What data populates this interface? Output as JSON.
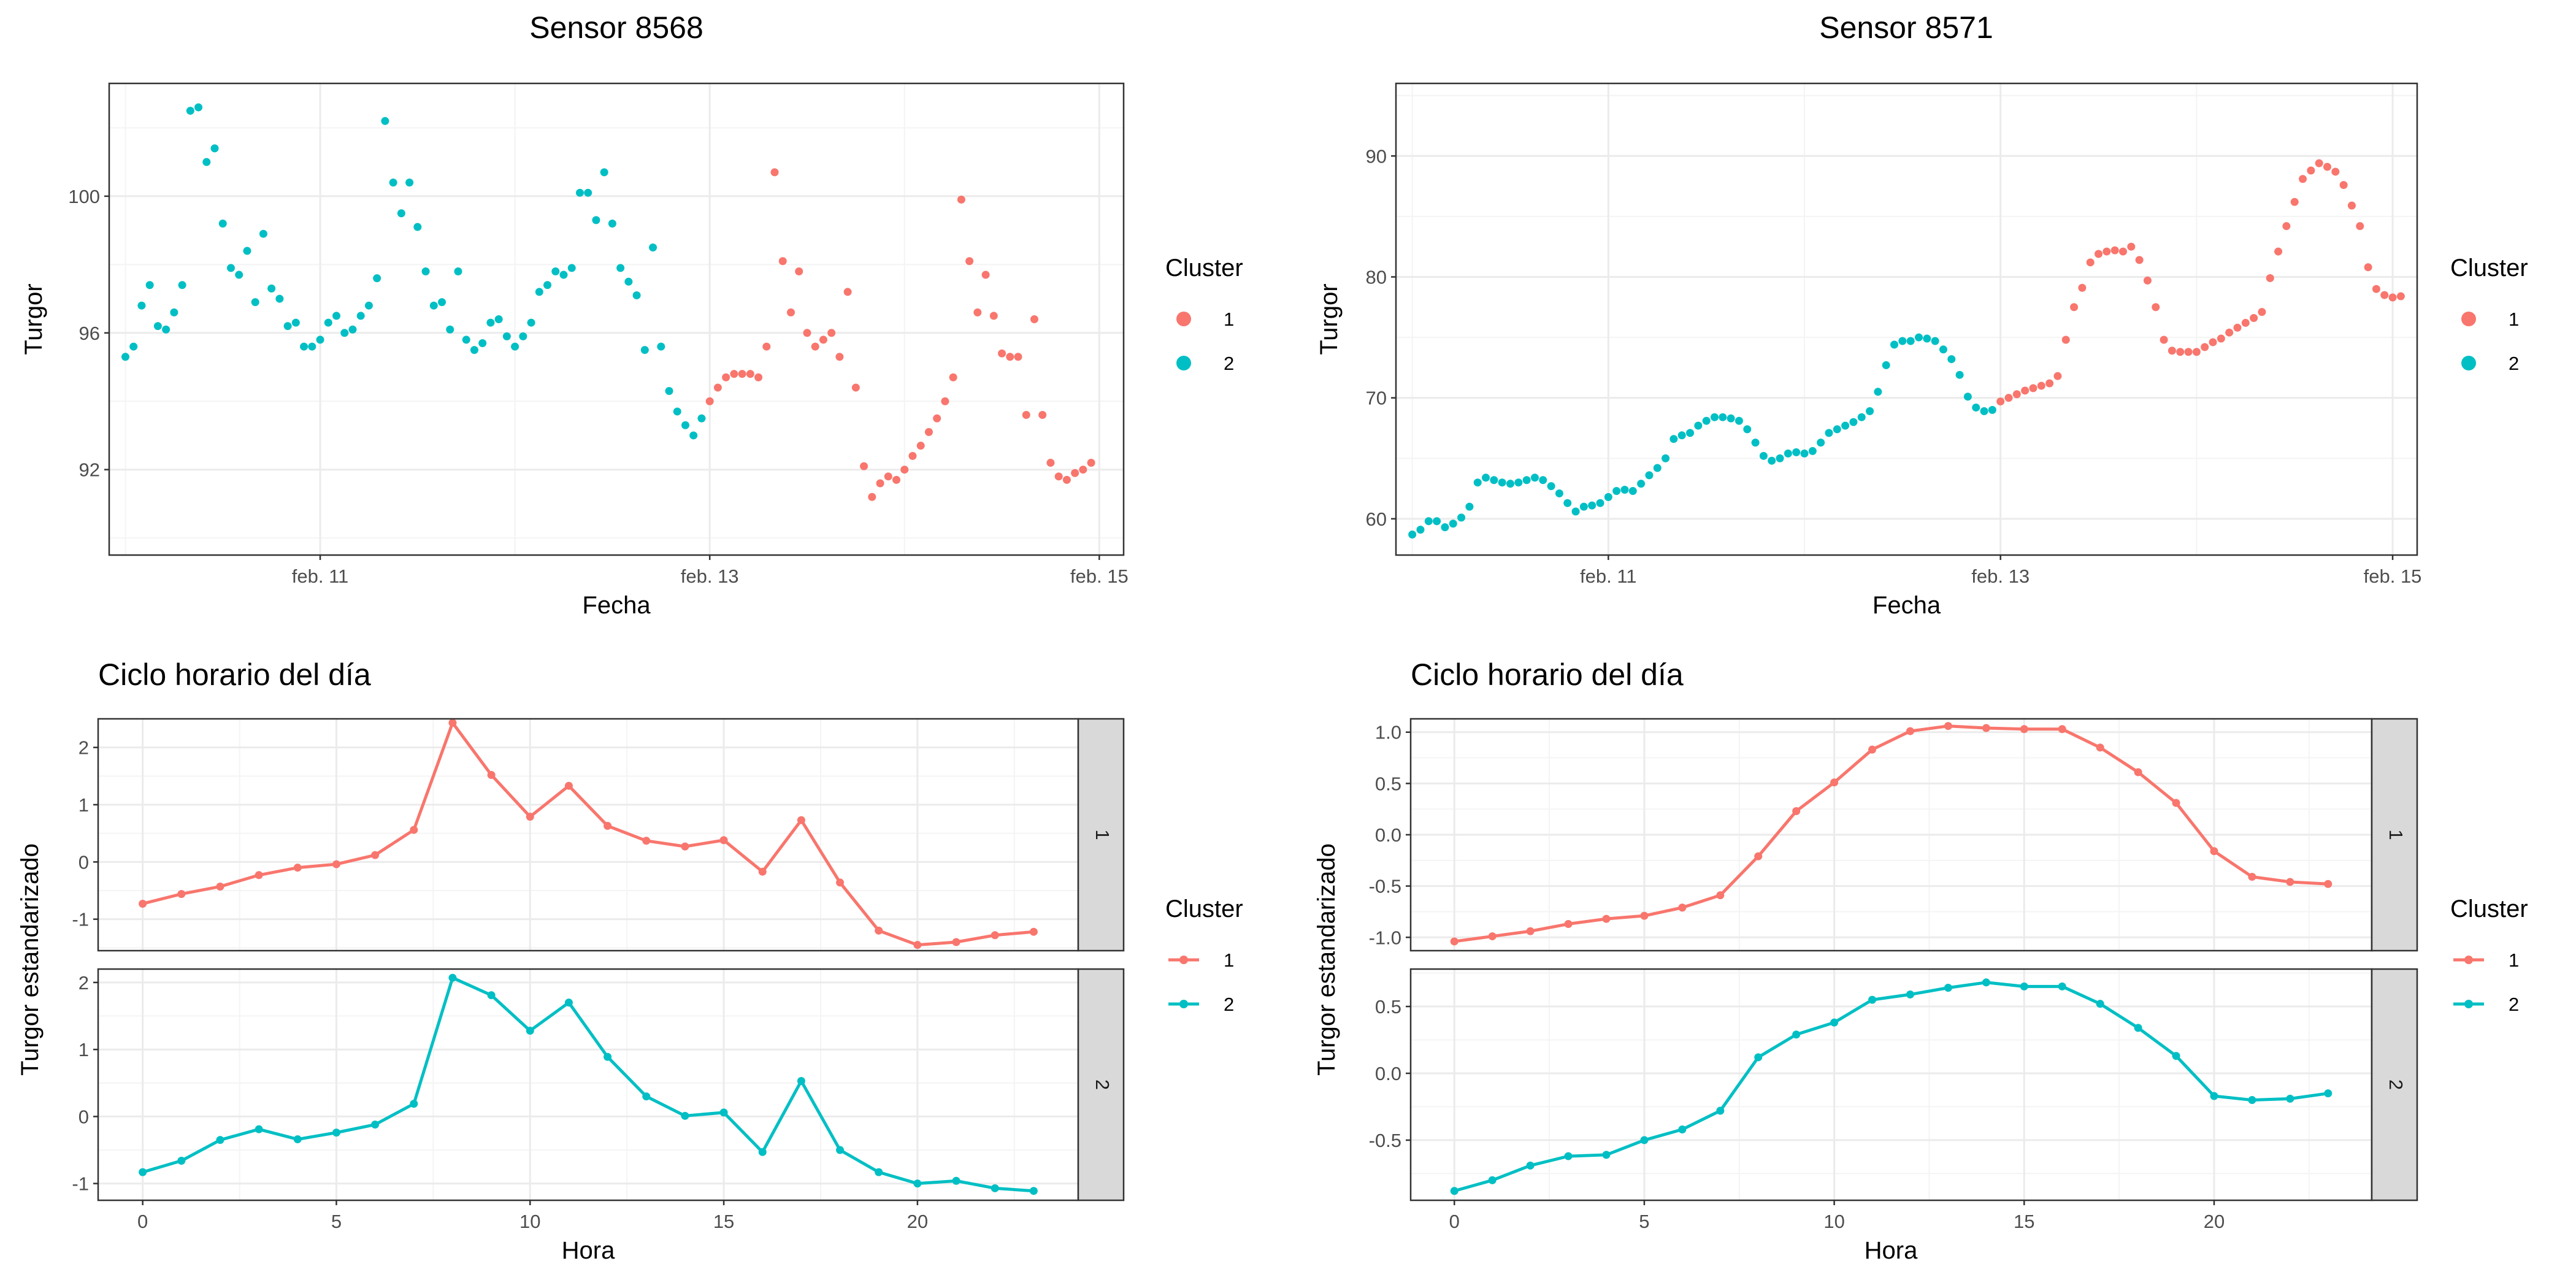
{
  "colors": {
    "cluster1": "#F8766D",
    "cluster2": "#00BFC4",
    "grid_major": "#EBEBEB",
    "grid_minor": "#F4F4F4",
    "strip_bg": "#D9D9D9",
    "border": "#333333"
  },
  "chart_data": [
    {
      "type": "scatter",
      "title": "Sensor 8568",
      "xlabel": "Fecha",
      "ylabel": "Turgor",
      "x_ticks": [
        {
          "value": "2023-02-11T00:00",
          "label": "feb. 11"
        },
        {
          "value": "2023-02-13T00:00",
          "label": "feb. 13"
        },
        {
          "value": "2023-02-15T00:00",
          "label": "feb. 15"
        }
      ],
      "y_ticks": [
        92,
        96,
        100
      ],
      "xlim": [
        "2023-02-09T22:00",
        "2023-02-15T03:00"
      ],
      "ylim": [
        89.5,
        103.3
      ],
      "legend": {
        "title": "Cluster",
        "entries": [
          "1",
          "2"
        ],
        "position": "right"
      },
      "start": "2023-02-10T00:00",
      "step_hours": 1,
      "series": [
        {
          "name": "2",
          "color_key": "cluster2",
          "values": [
            95.3,
            95.6,
            96.8,
            97.4,
            96.2,
            96.1,
            96.6,
            97.4,
            102.5,
            102.6,
            101.0,
            101.4,
            99.2,
            97.9,
            97.7,
            98.4,
            96.9,
            98.9,
            97.3,
            97.0,
            96.2,
            96.3,
            95.6,
            95.6,
            95.8,
            96.3,
            96.5,
            96.0,
            96.1,
            96.5,
            96.8,
            97.6,
            102.2,
            100.4,
            99.5,
            100.4,
            99.1,
            97.8,
            96.8,
            96.9,
            96.1,
            97.8,
            95.8,
            95.5,
            95.7,
            96.3,
            96.4,
            95.9,
            95.6,
            95.9,
            96.3,
            97.2,
            97.4,
            97.8,
            97.7,
            97.9,
            100.1,
            100.1,
            99.3,
            100.7,
            99.2,
            97.9,
            97.5,
            97.1,
            95.5,
            98.5,
            95.6,
            94.3,
            93.7,
            93.3,
            93.0,
            93.5
          ]
        },
        {
          "name": "1",
          "color_key": "cluster1",
          "values": [
            94.0,
            94.4,
            94.7,
            94.8,
            94.8,
            94.8,
            94.7,
            95.6,
            100.7,
            98.1,
            96.6,
            97.8,
            96.0,
            95.6,
            95.8,
            96.0,
            95.3,
            97.2,
            94.4,
            92.1,
            91.2,
            91.6,
            91.8,
            91.7,
            92.0,
            92.4,
            92.7,
            93.1,
            93.5,
            94.0,
            94.7,
            99.9,
            98.1,
            96.6,
            97.7,
            96.5,
            95.4,
            95.3,
            95.3,
            93.6,
            96.4,
            93.6,
            92.2,
            91.8,
            91.7,
            91.9,
            92.0,
            92.2
          ]
        }
      ]
    },
    {
      "type": "scatter",
      "title": "Sensor 8571",
      "xlabel": "Fecha",
      "ylabel": "Turgor",
      "x_ticks": [
        {
          "value": "2023-02-11T00:00",
          "label": "feb. 11"
        },
        {
          "value": "2023-02-13T00:00",
          "label": "feb. 13"
        },
        {
          "value": "2023-02-15T00:00",
          "label": "feb. 15"
        }
      ],
      "y_ticks": [
        60,
        70,
        80,
        90
      ],
      "xlim": [
        "2023-02-09T22:00",
        "2023-02-15T03:00"
      ],
      "ylim": [
        57,
        96
      ],
      "legend": {
        "title": "Cluster",
        "entries": [
          "1",
          "2"
        ],
        "position": "right"
      },
      "start": "2023-02-10T00:00",
      "step_hours": 1,
      "series": [
        {
          "name": "2",
          "color_key": "cluster2",
          "values": [
            58.7,
            59.1,
            59.8,
            59.8,
            59.3,
            59.6,
            60.1,
            61.0,
            63.0,
            63.4,
            63.2,
            63.0,
            62.9,
            63.0,
            63.2,
            63.4,
            63.2,
            62.7,
            62.1,
            61.3,
            60.6,
            61.0,
            61.1,
            61.3,
            61.8,
            62.3,
            62.4,
            62.3,
            62.9,
            63.6,
            64.2,
            65.0,
            66.6,
            66.9,
            67.1,
            67.7,
            68.1,
            68.4,
            68.4,
            68.3,
            68.1,
            67.4,
            66.3,
            65.2,
            64.8,
            65.0,
            65.4,
            65.5,
            65.4,
            65.6,
            66.3,
            67.1,
            67.4,
            67.7,
            68.0,
            68.4,
            68.9,
            70.5,
            72.7,
            74.4,
            74.7,
            74.7,
            75.0,
            74.9,
            74.7,
            74.0,
            73.2,
            71.9,
            70.1,
            69.2,
            68.9,
            69.0
          ]
        },
        {
          "name": "1",
          "color_key": "cluster1",
          "values": [
            69.7,
            70.0,
            70.3,
            70.6,
            70.8,
            71.0,
            71.2,
            71.8,
            74.8,
            77.5,
            79.1,
            81.2,
            81.9,
            82.1,
            82.2,
            82.1,
            82.5,
            81.4,
            79.7,
            77.5,
            74.8,
            73.9,
            73.8,
            73.8,
            73.8,
            74.2,
            74.6,
            74.9,
            75.4,
            75.8,
            76.2,
            76.6,
            77.1,
            79.9,
            82.1,
            84.2,
            86.2,
            88.1,
            88.8,
            89.4,
            89.1,
            88.7,
            87.6,
            85.9,
            84.2,
            80.8,
            79.0,
            78.5,
            78.3,
            78.4
          ]
        }
      ]
    },
    {
      "type": "line",
      "title": "Ciclo horario del día",
      "xlabel": "Hora",
      "ylabel": "Turgor estandarizado",
      "x": [
        0,
        1,
        2,
        3,
        4,
        5,
        6,
        7,
        8,
        9,
        10,
        11,
        12,
        13,
        14,
        15,
        16,
        17,
        18,
        19,
        20,
        21,
        22,
        23
      ],
      "x_ticks": [
        0,
        5,
        10,
        15,
        20
      ],
      "xlim": [
        -1.15,
        24.15
      ],
      "legend": {
        "title": "Cluster",
        "entries": [
          "1",
          "2"
        ],
        "position": "right"
      },
      "facets": [
        {
          "strip": "1",
          "color_key": "cluster1",
          "y_ticks": [
            -1,
            0,
            1,
            2
          ],
          "ylim": [
            -1.55,
            2.5
          ],
          "values": [
            -0.73,
            -0.56,
            -0.43,
            -0.23,
            -0.1,
            -0.04,
            0.12,
            0.56,
            2.43,
            1.52,
            0.79,
            1.33,
            0.63,
            0.37,
            0.27,
            0.38,
            -0.17,
            0.73,
            -0.36,
            -1.2,
            -1.45,
            -1.4,
            -1.28,
            -1.22
          ]
        },
        {
          "strip": "2",
          "color_key": "cluster2",
          "y_ticks": [
            -1,
            0,
            1,
            2
          ],
          "ylim": [
            -1.25,
            2.2
          ],
          "values": [
            -0.83,
            -0.66,
            -0.35,
            -0.19,
            -0.34,
            -0.24,
            -0.12,
            0.19,
            2.07,
            1.81,
            1.28,
            1.7,
            0.89,
            0.3,
            0.01,
            0.06,
            -0.53,
            0.53,
            -0.5,
            -0.83,
            -1.0,
            -0.96,
            -1.07,
            -1.11
          ]
        }
      ]
    },
    {
      "type": "line",
      "title": "Ciclo horario del día",
      "xlabel": "Hora",
      "ylabel": "Turgor estandarizado",
      "x": [
        0,
        1,
        2,
        3,
        4,
        5,
        6,
        7,
        8,
        9,
        10,
        11,
        12,
        13,
        14,
        15,
        16,
        17,
        18,
        19,
        20,
        21,
        22,
        23
      ],
      "x_ticks": [
        0,
        5,
        10,
        15,
        20
      ],
      "xlim": [
        -1.15,
        24.15
      ],
      "legend": {
        "title": "Cluster",
        "entries": [
          "1",
          "2"
        ],
        "position": "right"
      },
      "facets": [
        {
          "strip": "1",
          "color_key": "cluster1",
          "y_ticks": [
            -1.0,
            -0.5,
            0.0,
            0.5,
            1.0
          ],
          "y_tick_labels": [
            "-1.0",
            "-0.5",
            "0.0",
            "0.5",
            "1.0"
          ],
          "ylim": [
            -1.13,
            1.13
          ],
          "values": [
            -1.04,
            -0.99,
            -0.94,
            -0.87,
            -0.82,
            -0.79,
            -0.71,
            -0.59,
            -0.21,
            0.23,
            0.51,
            0.83,
            1.01,
            1.06,
            1.04,
            1.03,
            1.03,
            0.85,
            0.61,
            0.31,
            -0.16,
            -0.41,
            -0.46,
            -0.48
          ]
        },
        {
          "strip": "2",
          "color_key": "cluster2",
          "y_ticks": [
            -0.5,
            0.0,
            0.5
          ],
          "y_tick_labels": [
            "-0.5",
            "0.0",
            "0.5"
          ],
          "ylim": [
            -0.95,
            0.78
          ],
          "values": [
            -0.88,
            -0.8,
            -0.69,
            -0.62,
            -0.61,
            -0.5,
            -0.42,
            -0.28,
            0.12,
            0.29,
            0.38,
            0.55,
            0.59,
            0.64,
            0.68,
            0.65,
            0.65,
            0.52,
            0.34,
            0.13,
            -0.17,
            -0.2,
            -0.19,
            -0.15
          ]
        }
      ]
    }
  ]
}
